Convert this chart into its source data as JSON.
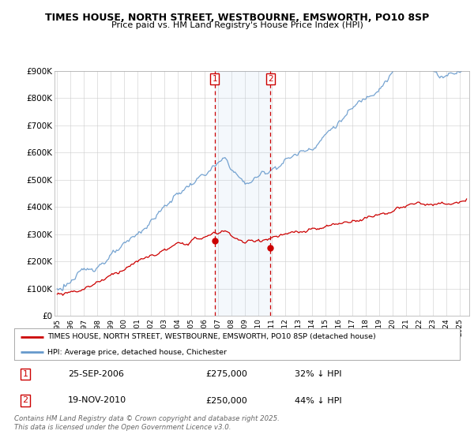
{
  "title": "TIMES HOUSE, NORTH STREET, WESTBOURNE, EMSWORTH, PO10 8SP",
  "subtitle": "Price paid vs. HM Land Registry's House Price Index (HPI)",
  "legend_label_red": "TIMES HOUSE, NORTH STREET, WESTBOURNE, EMSWORTH, PO10 8SP (detached house)",
  "legend_label_blue": "HPI: Average price, detached house, Chichester",
  "transaction1": {
    "date": "25-SEP-2006",
    "price": "£275,000",
    "hpi_diff": "32% ↓ HPI"
  },
  "transaction2": {
    "date": "19-NOV-2010",
    "price": "£250,000",
    "hpi_diff": "44% ↓ HPI"
  },
  "footer": "Contains HM Land Registry data © Crown copyright and database right 2025.\nThis data is licensed under the Open Government Licence v3.0.",
  "ylim": [
    0,
    900000
  ],
  "yticks": [
    0,
    100000,
    200000,
    300000,
    400000,
    500000,
    600000,
    700000,
    800000,
    900000
  ],
  "ytick_labels": [
    "£0",
    "£100K",
    "£200K",
    "£300K",
    "£400K",
    "£500K",
    "£600K",
    "£700K",
    "£800K",
    "£900K"
  ],
  "red_color": "#cc0000",
  "blue_color": "#6699cc",
  "vline1_year": 2006.73,
  "vline2_year": 2010.89,
  "transaction1_year": 2006.73,
  "transaction1_price": 275000,
  "transaction2_year": 2010.89,
  "transaction2_price": 250000,
  "background_color": "#ffffff",
  "grid_color": "#cccccc"
}
